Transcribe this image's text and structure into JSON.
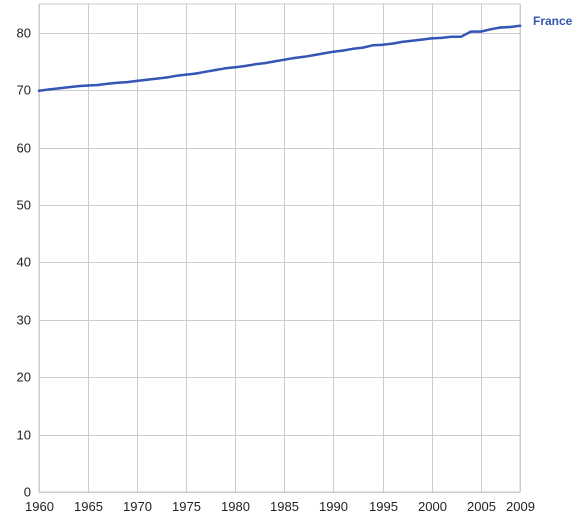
{
  "chart_data": {
    "type": "line",
    "title": "",
    "xlabel": "",
    "ylabel": "",
    "xlim": [
      1960,
      2009
    ],
    "ylim": [
      0,
      85
    ],
    "x_ticks": [
      "1960",
      "1965",
      "1970",
      "1975",
      "1980",
      "1985",
      "1990",
      "1995",
      "2000",
      "2005",
      "2009"
    ],
    "y_ticks": [
      "0",
      "10",
      "20",
      "30",
      "40",
      "50",
      "60",
      "70",
      "80"
    ],
    "grid": true,
    "legend": "right",
    "series": [
      {
        "name": "France",
        "color": "#3556b4",
        "x": [
          1960,
          1961,
          1962,
          1963,
          1964,
          1965,
          1966,
          1967,
          1968,
          1969,
          1970,
          1971,
          1972,
          1973,
          1974,
          1975,
          1976,
          1977,
          1978,
          1979,
          1980,
          1981,
          1982,
          1983,
          1984,
          1985,
          1986,
          1987,
          1988,
          1989,
          1990,
          1991,
          1992,
          1993,
          1994,
          1995,
          1996,
          1997,
          1998,
          1999,
          2000,
          2001,
          2002,
          2003,
          2004,
          2005,
          2006,
          2007,
          2008,
          2009
        ],
        "values": [
          69.9,
          70.1,
          70.3,
          70.5,
          70.7,
          70.8,
          70.9,
          71.1,
          71.3,
          71.4,
          71.6,
          71.8,
          72.0,
          72.2,
          72.5,
          72.7,
          72.9,
          73.2,
          73.5,
          73.8,
          74.0,
          74.2,
          74.5,
          74.7,
          75.0,
          75.3,
          75.6,
          75.8,
          76.1,
          76.4,
          76.7,
          76.9,
          77.2,
          77.4,
          77.8,
          77.9,
          78.1,
          78.4,
          78.6,
          78.8,
          79.0,
          79.1,
          79.3,
          79.3,
          80.2,
          80.2,
          80.6,
          80.9,
          81.0,
          81.2
        ]
      }
    ]
  }
}
